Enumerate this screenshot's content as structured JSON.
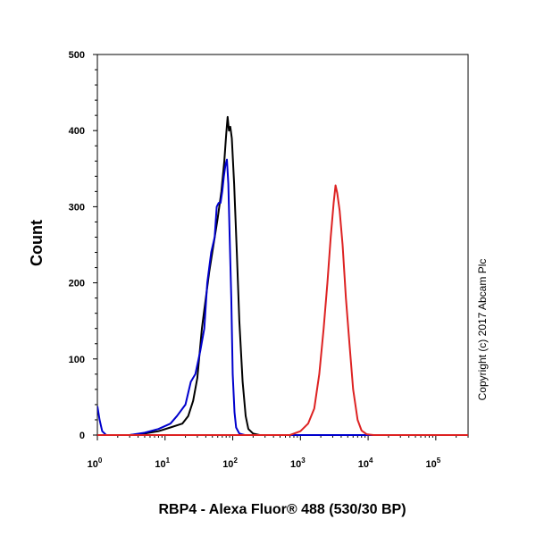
{
  "chart_data": {
    "type": "line",
    "xlabel": "RBP4 - Alexa Fluor® 488 (530/30 BP)",
    "ylabel": "Count",
    "x_scale": "log",
    "xlim": [
      1,
      300000
    ],
    "ylim": [
      0,
      500
    ],
    "x_ticks": [
      {
        "base": "10",
        "exp": "0",
        "value": 1
      },
      {
        "base": "10",
        "exp": "1",
        "value": 10
      },
      {
        "base": "10",
        "exp": "2",
        "value": 100
      },
      {
        "base": "10",
        "exp": "3",
        "value": 1000
      },
      {
        "base": "10",
        "exp": "4",
        "value": 10000
      },
      {
        "base": "10",
        "exp": "5",
        "value": 100000
      }
    ],
    "y_ticks": [
      0,
      100,
      200,
      300,
      400,
      500
    ],
    "grid": false,
    "series": [
      {
        "color": "#000000",
        "points": [
          [
            1,
            0
          ],
          [
            3,
            0
          ],
          [
            5,
            2
          ],
          [
            8,
            5
          ],
          [
            12,
            10
          ],
          [
            18,
            15
          ],
          [
            22,
            25
          ],
          [
            26,
            45
          ],
          [
            30,
            75
          ],
          [
            35,
            140
          ],
          [
            40,
            180
          ],
          [
            45,
            215
          ],
          [
            52,
            250
          ],
          [
            60,
            285
          ],
          [
            68,
            320
          ],
          [
            75,
            360
          ],
          [
            80,
            395
          ],
          [
            84,
            418
          ],
          [
            88,
            400
          ],
          [
            92,
            405
          ],
          [
            97,
            390
          ],
          [
            105,
            330
          ],
          [
            115,
            240
          ],
          [
            125,
            150
          ],
          [
            140,
            70
          ],
          [
            155,
            25
          ],
          [
            170,
            8
          ],
          [
            200,
            2
          ],
          [
            250,
            0
          ],
          [
            300000,
            0
          ]
        ]
      },
      {
        "color": "#0000cc",
        "points": [
          [
            1,
            38
          ],
          [
            1.08,
            20
          ],
          [
            1.18,
            5
          ],
          [
            1.35,
            0
          ],
          [
            3,
            0
          ],
          [
            5,
            3
          ],
          [
            8,
            8
          ],
          [
            12,
            15
          ],
          [
            15,
            25
          ],
          [
            20,
            40
          ],
          [
            24,
            70
          ],
          [
            28,
            80
          ],
          [
            33,
            110
          ],
          [
            38,
            140
          ],
          [
            42,
            200
          ],
          [
            48,
            240
          ],
          [
            54,
            260
          ],
          [
            58,
            300
          ],
          [
            62,
            305
          ],
          [
            66,
            305
          ],
          [
            70,
            320
          ],
          [
            74,
            340
          ],
          [
            78,
            355
          ],
          [
            82,
            362
          ],
          [
            86,
            330
          ],
          [
            90,
            260
          ],
          [
            95,
            180
          ],
          [
            100,
            80
          ],
          [
            106,
            30
          ],
          [
            112,
            10
          ],
          [
            125,
            2
          ],
          [
            150,
            0
          ],
          [
            300000,
            0
          ]
        ]
      },
      {
        "color": "#dd2222",
        "points": [
          [
            1,
            0
          ],
          [
            300,
            0
          ],
          [
            700,
            0
          ],
          [
            1000,
            5
          ],
          [
            1300,
            15
          ],
          [
            1600,
            35
          ],
          [
            1900,
            80
          ],
          [
            2200,
            140
          ],
          [
            2500,
            200
          ],
          [
            2800,
            260
          ],
          [
            3100,
            305
          ],
          [
            3300,
            328
          ],
          [
            3500,
            318
          ],
          [
            3800,
            295
          ],
          [
            4200,
            250
          ],
          [
            4700,
            180
          ],
          [
            5300,
            120
          ],
          [
            6000,
            60
          ],
          [
            7000,
            20
          ],
          [
            8000,
            6
          ],
          [
            9500,
            1
          ],
          [
            12000,
            0
          ],
          [
            300000,
            0
          ]
        ]
      }
    ]
  },
  "watermark": "Copyright (c) 2017 Abcam Plc"
}
